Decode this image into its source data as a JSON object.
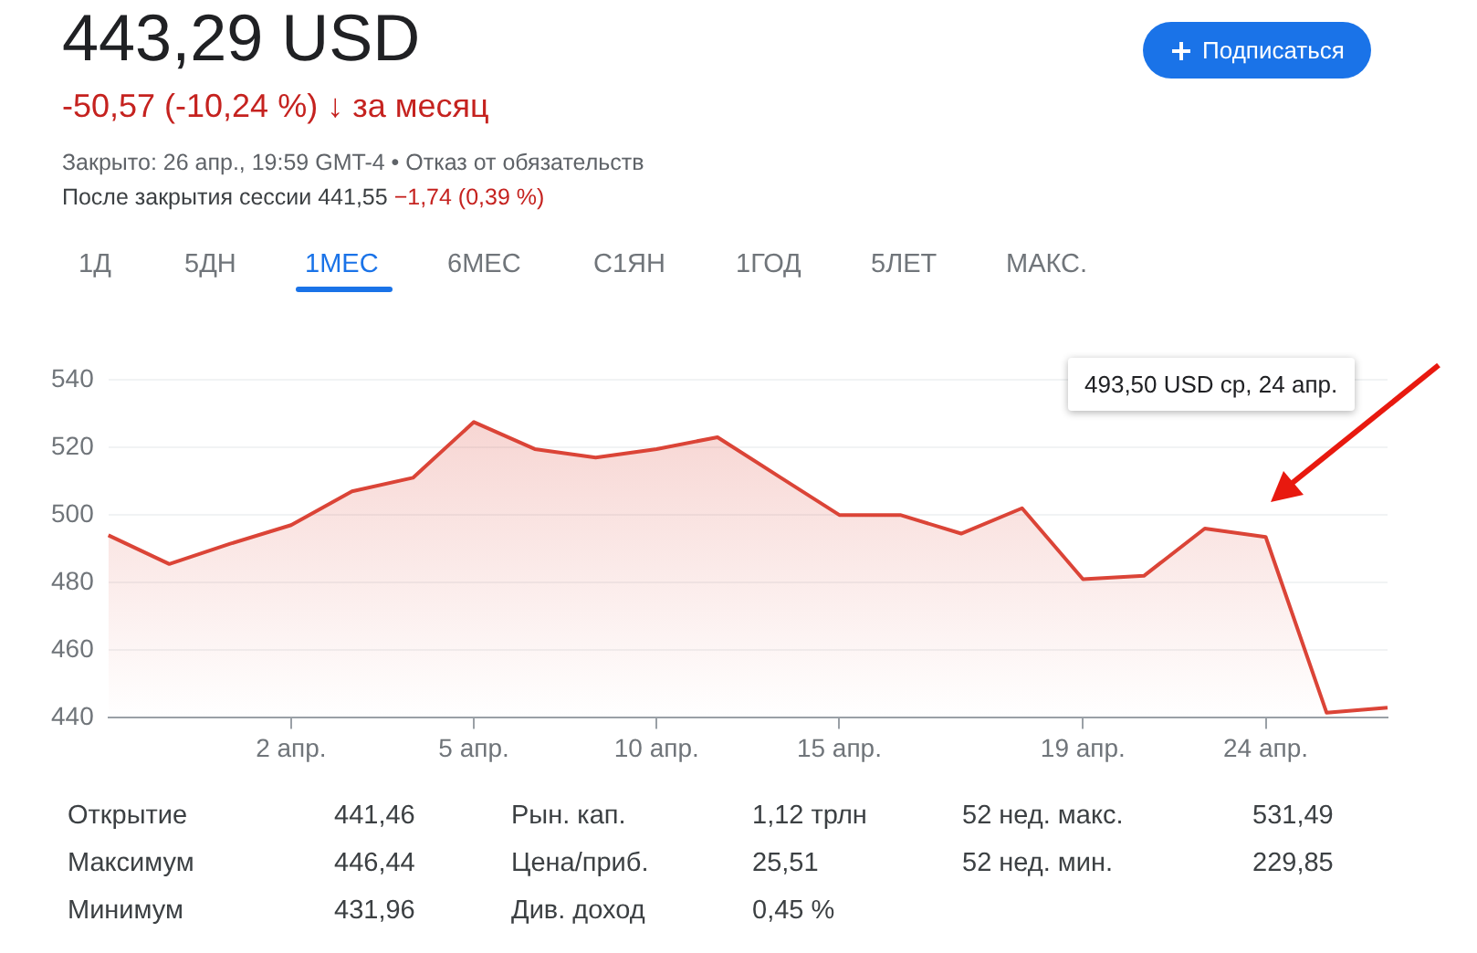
{
  "chart_data": {
    "type": "area",
    "title": "443,29 USD",
    "subtitle": "-50,57 (-10,24 %) ↓ за месяц",
    "categories": [
      null,
      null,
      null,
      "2 апр.",
      null,
      null,
      "5 апр.",
      null,
      null,
      "10 апр.",
      null,
      null,
      "15 апр.",
      null,
      null,
      null,
      "19 апр.",
      null,
      null,
      "24 апр.",
      null,
      null
    ],
    "series": [
      {
        "color": "#db4437",
        "values": [
          494,
          485.5,
          491.5,
          497,
          507,
          511,
          527.5,
          519.5,
          517,
          519.5,
          523,
          511.5,
          500,
          500,
          494.5,
          502,
          481,
          482,
          496,
          493.5,
          441.5,
          443
        ]
      }
    ],
    "ylim": [
      440,
      540
    ],
    "yticks": [
      440,
      460,
      480,
      500,
      520,
      540
    ],
    "grid": "y",
    "legend": false,
    "annotations": [
      "Закрыто: 26 апр., 19:59 GMT-4 • Отказ от обязательств",
      "После закрытия сессии 441,55",
      "−1,74 (0,39 %)",
      "Подписаться",
      "1Д",
      "5ДН",
      "1МЕС",
      "6МЕС",
      "С1ЯН",
      "1ГОД",
      "5ЛЕТ",
      "МАКС.",
      "Открытие",
      "441,46",
      "Максимум",
      "446,44",
      "Минимум",
      "431,96",
      "Рын. кап.",
      "1,12 трлн",
      "Цена/приб.",
      "25,51",
      "Див. доход",
      "0,45 %",
      "52 нед. макс.",
      "531,49",
      "52 нед. мин.",
      "229,85",
      "493,50 USD  ср, 24 апр."
    ]
  }
}
